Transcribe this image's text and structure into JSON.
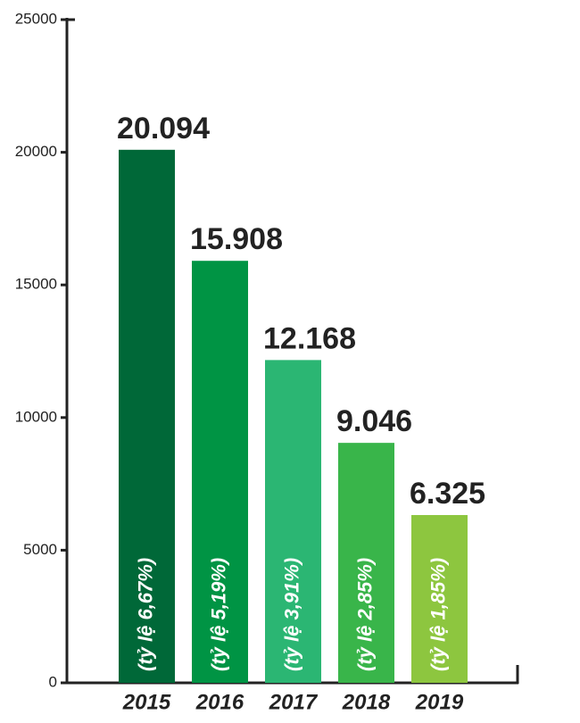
{
  "chart_data": {
    "type": "bar",
    "categories": [
      "2015",
      "2016",
      "2017",
      "2018",
      "2019"
    ],
    "values": [
      20094,
      15908,
      12168,
      9046,
      6325
    ],
    "value_labels": [
      "20.094",
      "15.908",
      "12.168",
      "9.046",
      "6.325"
    ],
    "annotations": [
      "(tỷ lệ 6,67%)",
      "(tỷ lệ 5,19%)",
      "(tỷ lệ 3,91%)",
      "(tỷ lệ 2,85%)",
      "(tỷ lệ 1,85%)"
    ],
    "colors": [
      "#006838",
      "#009444",
      "#2bb673",
      "#39b54a",
      "#8dc63f"
    ],
    "ylim": [
      0,
      25000
    ],
    "yticks": [
      0,
      5000,
      10000,
      15000,
      20000,
      25000
    ]
  }
}
